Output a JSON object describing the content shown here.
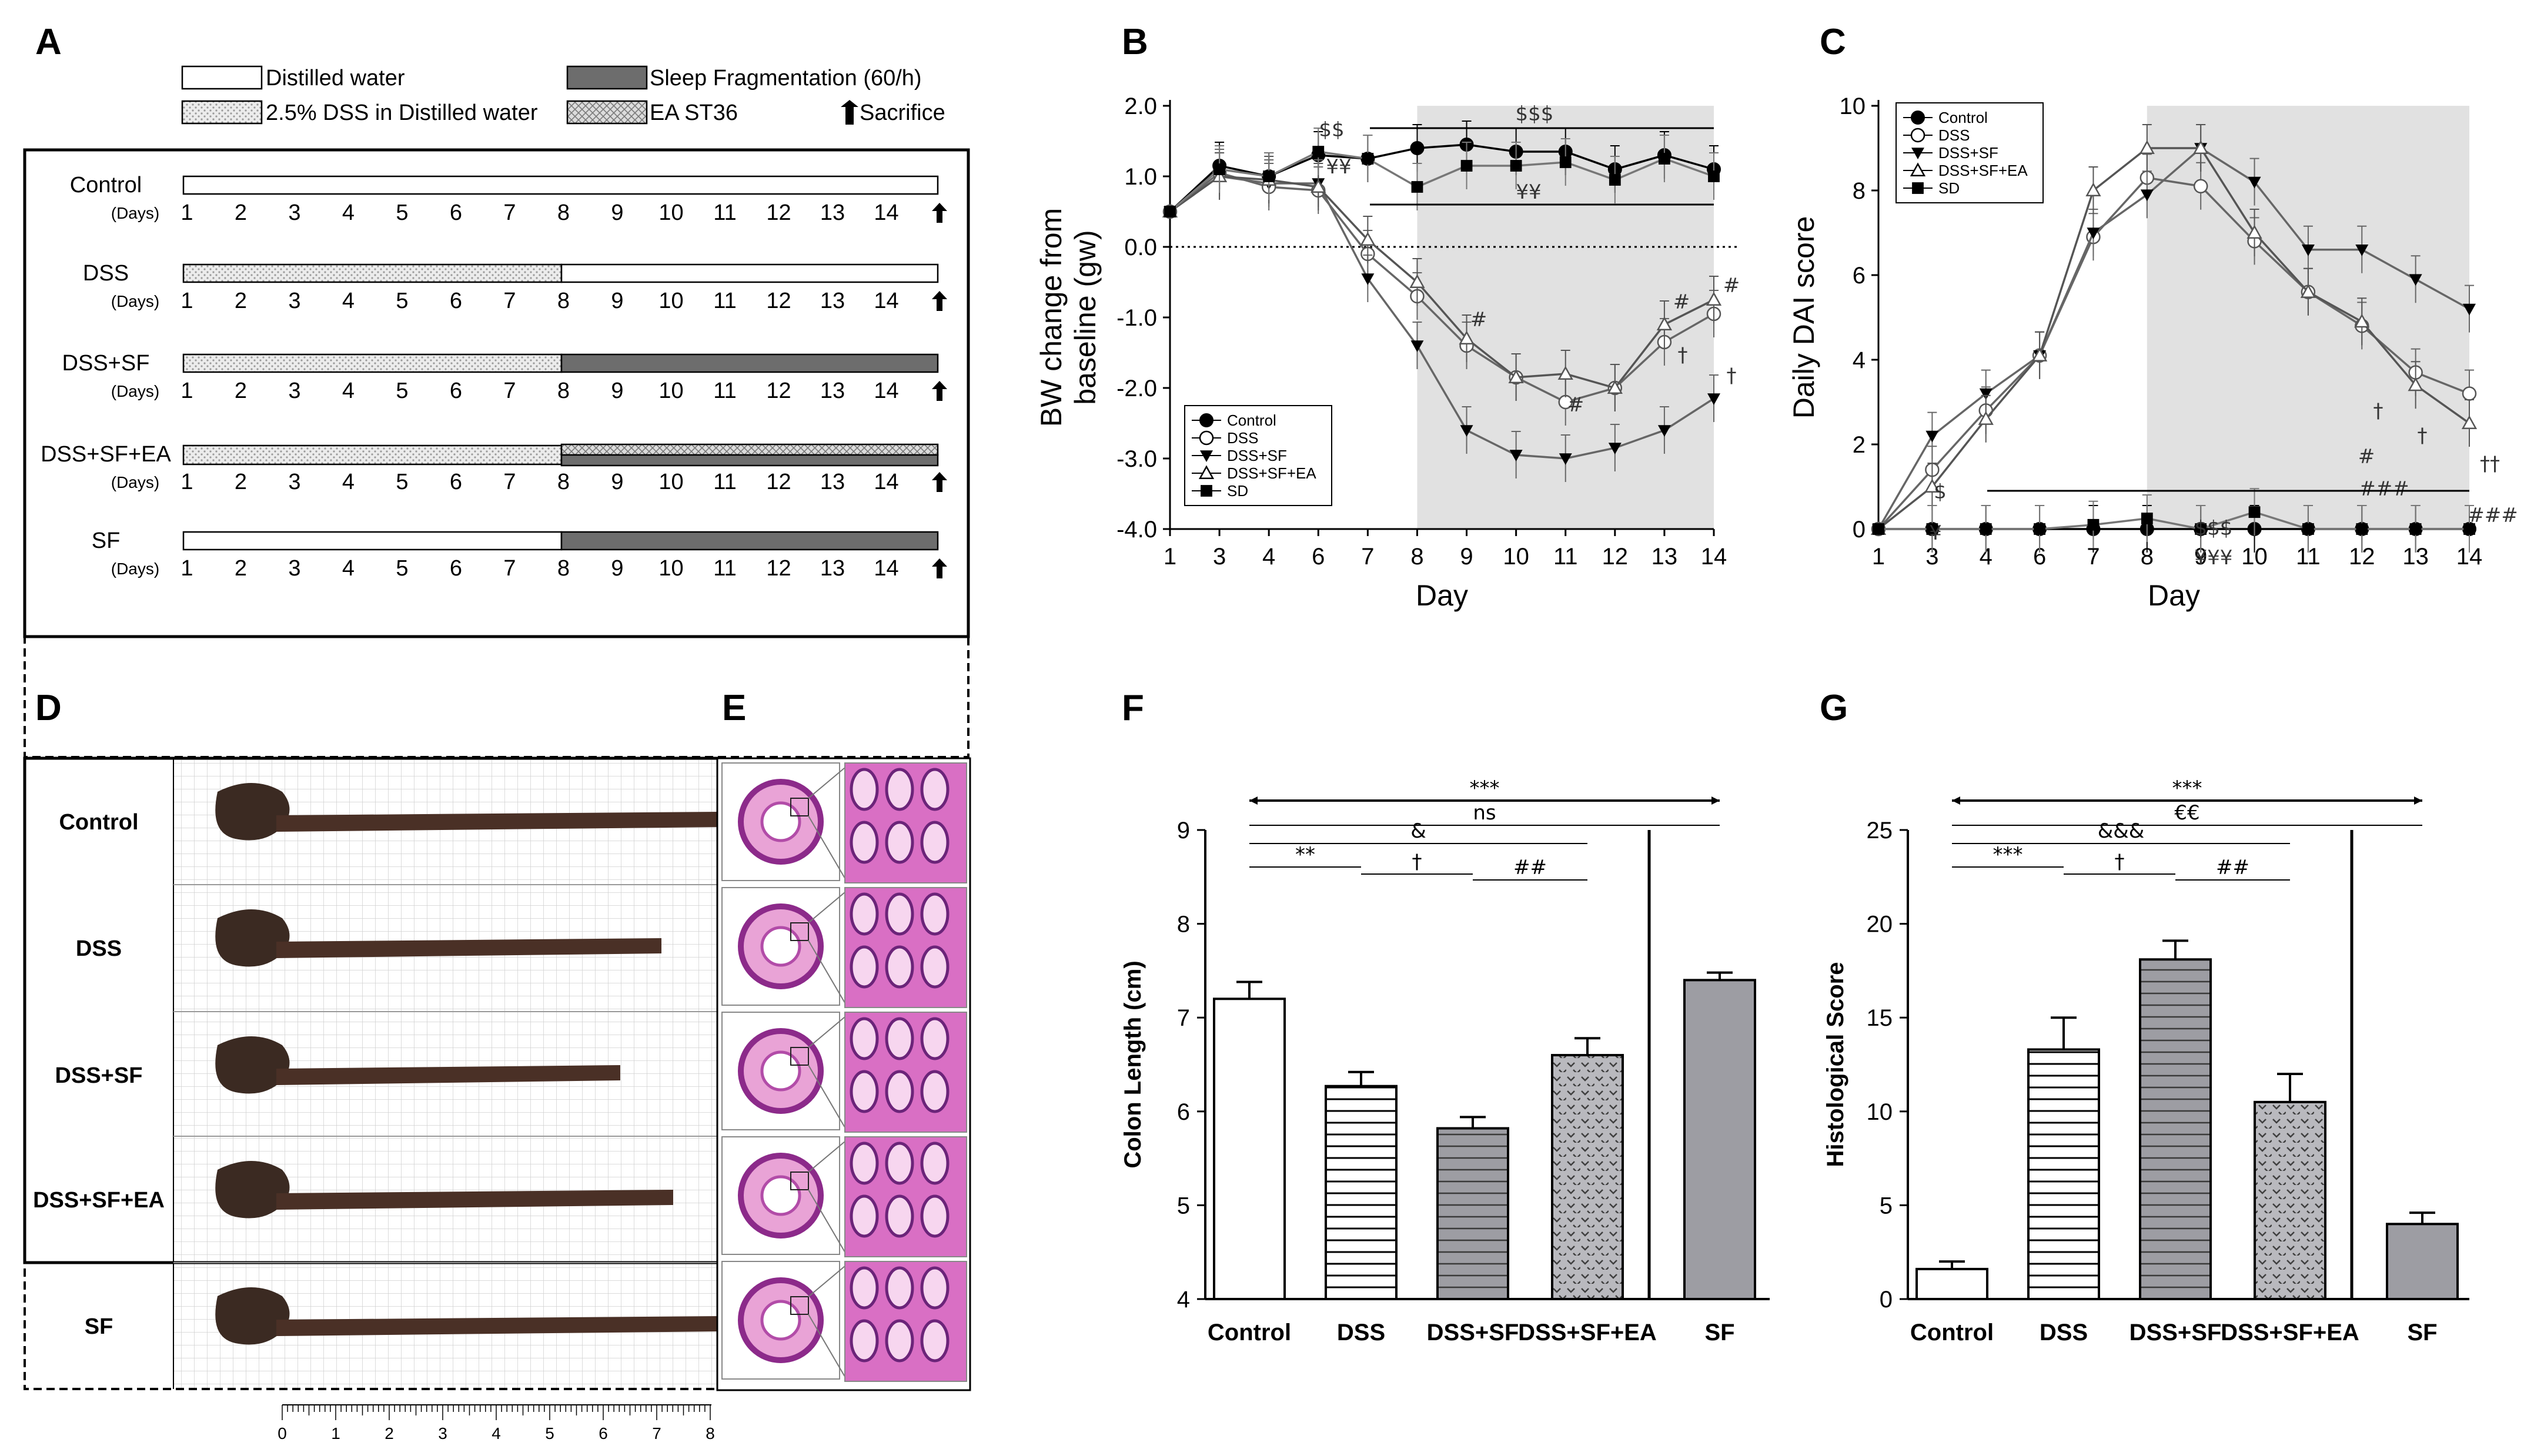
{
  "panel_labels": [
    "A",
    "B",
    "C",
    "D",
    "E",
    "F",
    "G"
  ],
  "panelA": {
    "legend": {
      "distilled": "Distilled water",
      "dss": "2.5% DSS in Distilled water",
      "sleep": "Sleep Fragmentation (60/h)",
      "ea": "EA ST36",
      "sacrifice": "Sacrifice"
    },
    "days_label": "(Days)",
    "day_numbers": [
      "1",
      "2",
      "3",
      "4",
      "5",
      "6",
      "7",
      "8",
      "9",
      "10",
      "11",
      "12",
      "13",
      "14"
    ],
    "groups": [
      "Control",
      "DSS",
      "DSS+SF",
      "DSS+SF+EA",
      "SF"
    ]
  },
  "panelD": {
    "groups": [
      "Control",
      "DSS",
      "DSS+SF",
      "DSS+SF+EA",
      "SF"
    ],
    "ruler_labels": [
      "0",
      "1",
      "2",
      "3",
      "4",
      "5",
      "6",
      "7",
      "8"
    ]
  },
  "colors": {
    "gray_line": "#6e6e6e",
    "shade": "#e1e1e1",
    "bar_gray": "#9d9da3",
    "black": "#000000"
  },
  "chart_data": [
    {
      "panel": "B",
      "type": "line",
      "xlabel": "Day",
      "ylabel_lines": [
        "BW change from",
        "baseline (gw)"
      ],
      "x_ticks": [
        "1",
        "3",
        "4",
        "6",
        "7",
        "8",
        "9",
        "10",
        "11",
        "12",
        "13",
        "14"
      ],
      "y_ticks": [
        "-4.0",
        "-3.0",
        "-2.0",
        "-1.0",
        "0.0",
        "1.0",
        "2.0"
      ],
      "ylim": [
        -4.0,
        2.0
      ],
      "shaded_days": [
        8,
        14
      ],
      "reference_line_y": 0.0,
      "legend_position": "bottom-left",
      "series": [
        {
          "name": "Control",
          "marker": "filled-circle",
          "x": [
            1,
            3,
            4,
            6,
            7,
            8,
            9,
            10,
            11,
            12,
            13,
            14
          ],
          "values": [
            0.5,
            1.15,
            1.0,
            1.3,
            1.25,
            1.4,
            1.45,
            1.35,
            1.35,
            1.1,
            1.3,
            1.1
          ]
        },
        {
          "name": "DSS",
          "marker": "open-circle",
          "x": [
            1,
            3,
            4,
            6,
            7,
            8,
            9,
            10,
            11,
            12,
            13,
            14
          ],
          "values": [
            0.5,
            1.05,
            0.85,
            0.8,
            -0.1,
            -0.7,
            -1.4,
            -1.85,
            -2.2,
            -2.0,
            -1.35,
            -0.95
          ]
        },
        {
          "name": "DSS+SF",
          "marker": "filled-triangle-down",
          "x": [
            1,
            3,
            4,
            6,
            7,
            8,
            9,
            10,
            11,
            12,
            13,
            14
          ],
          "values": [
            0.5,
            1.0,
            0.9,
            0.9,
            -0.45,
            -1.4,
            -2.6,
            -2.95,
            -3.0,
            -2.85,
            -2.6,
            -2.15
          ]
        },
        {
          "name": "DSS+SF+EA",
          "marker": "open-triangle",
          "x": [
            1,
            3,
            4,
            6,
            7,
            8,
            9,
            10,
            11,
            12,
            13,
            14
          ],
          "values": [
            0.5,
            1.0,
            0.95,
            0.85,
            0.1,
            -0.5,
            -1.3,
            -1.85,
            -1.8,
            -2.0,
            -1.1,
            -0.75
          ]
        },
        {
          "name": "SD",
          "marker": "filled-square",
          "x": [
            1,
            3,
            4,
            6,
            7,
            8,
            9,
            10,
            11,
            12,
            13,
            14
          ],
          "values": [
            0.5,
            1.1,
            1.0,
            1.35,
            1.25,
            0.85,
            1.15,
            1.15,
            1.2,
            0.95,
            1.25,
            1.0
          ]
        }
      ],
      "annotations": [
        "$$",
        "¥¥",
        "$$$",
        "¥¥",
        "#",
        "#",
        "#",
        "#",
        "†",
        "†"
      ]
    },
    {
      "panel": "C",
      "type": "line",
      "xlabel": "Day",
      "ylabel": "Daily DAI score",
      "x_ticks": [
        "1",
        "3",
        "4",
        "6",
        "7",
        "8",
        "9",
        "10",
        "11",
        "12",
        "13",
        "14"
      ],
      "y_ticks": [
        "0",
        "2",
        "4",
        "6",
        "8",
        "10"
      ],
      "ylim": [
        0,
        10
      ],
      "shaded_days": [
        8,
        14
      ],
      "legend_position": "top-left",
      "series": [
        {
          "name": "Control",
          "marker": "filled-circle",
          "x": [
            1,
            3,
            4,
            6,
            7,
            8,
            9,
            10,
            11,
            12,
            13,
            14
          ],
          "values": [
            0,
            0,
            0,
            0,
            0,
            0,
            0,
            0,
            0,
            0,
            0,
            0
          ]
        },
        {
          "name": "DSS",
          "marker": "open-circle",
          "x": [
            1,
            3,
            4,
            6,
            7,
            8,
            9,
            10,
            11,
            12,
            13,
            14
          ],
          "values": [
            0,
            1.4,
            2.8,
            4.1,
            6.9,
            8.3,
            8.1,
            6.8,
            5.6,
            4.8,
            3.7,
            3.2
          ]
        },
        {
          "name": "DSS+SF",
          "marker": "filled-triangle-down",
          "x": [
            1,
            3,
            4,
            6,
            7,
            8,
            9,
            10,
            11,
            12,
            13,
            14
          ],
          "values": [
            0,
            2.2,
            3.2,
            4.1,
            7.0,
            7.9,
            9.0,
            8.2,
            6.6,
            6.6,
            5.9,
            5.2
          ]
        },
        {
          "name": "DSS+SF+EA",
          "marker": "open-triangle",
          "x": [
            1,
            3,
            4,
            6,
            7,
            8,
            9,
            10,
            11,
            12,
            13,
            14
          ],
          "values": [
            0,
            1.0,
            2.6,
            4.1,
            8.0,
            9.0,
            9.0,
            7.0,
            5.6,
            4.9,
            3.4,
            2.5
          ]
        },
        {
          "name": "SD",
          "marker": "filled-square",
          "x": [
            1,
            3,
            4,
            6,
            7,
            8,
            9,
            10,
            11,
            12,
            13,
            14
          ],
          "values": [
            0,
            0,
            0,
            0,
            0.1,
            0.25,
            0,
            0.4,
            0,
            0,
            0,
            0
          ]
        }
      ],
      "annotations": [
        "$",
        "¥",
        "$$$",
        "¥¥¥",
        "†",
        "#",
        "†",
        "###",
        "††",
        "###"
      ]
    },
    {
      "panel": "F",
      "type": "bar",
      "ylabel": "Colon Length (cm)",
      "categories": [
        "Control",
        "DSS",
        "DSS+SF",
        "DSS+SF+EA",
        "SF"
      ],
      "values": [
        7.2,
        6.27,
        5.82,
        6.6,
        7.4
      ],
      "errors": [
        0.18,
        0.15,
        0.12,
        0.18,
        0.08
      ],
      "y_ticks": [
        "4",
        "5",
        "6",
        "7",
        "8",
        "9"
      ],
      "ylim": [
        4,
        9
      ],
      "significance": [
        "***",
        "ns",
        "&",
        "**",
        "†",
        "##"
      ]
    },
    {
      "panel": "G",
      "type": "bar",
      "ylabel": "Histological Score",
      "categories": [
        "Control",
        "DSS",
        "DSS+SF",
        "DSS+SF+EA",
        "SF"
      ],
      "values": [
        1.6,
        13.3,
        18.1,
        10.5,
        4.0
      ],
      "errors": [
        0.4,
        1.7,
        1.0,
        1.5,
        0.6
      ],
      "y_ticks": [
        "0",
        "5",
        "10",
        "15",
        "20",
        "25"
      ],
      "ylim": [
        0,
        25
      ],
      "significance": [
        "***",
        "€€",
        "&&&",
        "***",
        "†",
        "##"
      ]
    }
  ]
}
